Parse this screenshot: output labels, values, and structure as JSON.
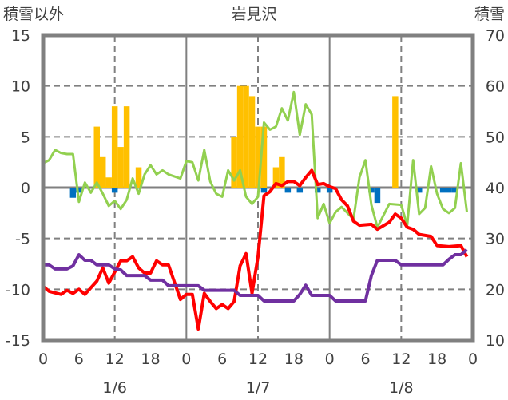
{
  "chart_data": {
    "type": "line",
    "title": "岩見沢",
    "ylabel_left": "積雪以外",
    "ylabel_right": "積雪",
    "ylim_left": [
      -15,
      15
    ],
    "ylim_right": [
      10,
      70
    ],
    "yticks_left": [
      "15",
      "10",
      "5",
      "0",
      "-5",
      "-10",
      "-15"
    ],
    "yticks_right": [
      "70",
      "60",
      "50",
      "40",
      "30",
      "20",
      "10"
    ],
    "xticks": [
      "0",
      "6",
      "12",
      "18",
      "0",
      "6",
      "12",
      "18",
      "0",
      "6",
      "12",
      "18",
      "0"
    ],
    "dates": [
      "1/6",
      "1/7",
      "1/8"
    ],
    "xlim_hours": [
      0,
      72
    ],
    "grid": true,
    "colors": {
      "snowfall": "#FFC000",
      "snow_decrease": "#0070C0",
      "red_line": "#FF0000",
      "green_line": "#92D050",
      "purple_line": "#7030A0",
      "axis": "#808080",
      "text": "#404040"
    },
    "series": [
      {
        "name": "snowfall",
        "kind": "bar",
        "axis": "left",
        "color": "#FFC000",
        "points": [
          [
            9,
            6
          ],
          [
            10,
            3
          ],
          [
            11,
            1
          ],
          [
            12,
            8
          ],
          [
            13,
            4
          ],
          [
            14,
            8
          ],
          [
            16,
            2
          ],
          [
            32,
            5
          ],
          [
            33,
            10
          ],
          [
            34,
            10
          ],
          [
            35,
            9
          ],
          [
            36,
            6
          ],
          [
            37,
            6
          ],
          [
            39,
            2
          ],
          [
            40,
            3
          ],
          [
            59,
            9
          ]
        ]
      },
      {
        "name": "snow-decrease",
        "kind": "bar",
        "axis": "left",
        "color": "#0070C0",
        "points": [
          [
            5,
            -1
          ],
          [
            6,
            -0.5
          ],
          [
            12,
            -0.5
          ],
          [
            37,
            -0.5
          ],
          [
            41,
            -0.5
          ],
          [
            43,
            -0.5
          ],
          [
            46,
            -0.5
          ],
          [
            48,
            -0.5
          ],
          [
            55,
            -0.5
          ],
          [
            56,
            -1.5
          ],
          [
            63,
            -0.5
          ],
          [
            67,
            -0.5
          ],
          [
            68,
            -0.5
          ],
          [
            69,
            -0.5
          ]
        ]
      },
      {
        "name": "green-line",
        "kind": "line",
        "axis": "left",
        "color": "#92D050",
        "points": [
          [
            0,
            2.4
          ],
          [
            1,
            2.7
          ],
          [
            2,
            3.7
          ],
          [
            3,
            3.4
          ],
          [
            4,
            3.3
          ],
          [
            5,
            3.3
          ],
          [
            6,
            -1.4
          ],
          [
            7,
            0.5
          ],
          [
            8,
            -0.5
          ],
          [
            9,
            0.5
          ],
          [
            10,
            -0.6
          ],
          [
            11,
            -1.8
          ],
          [
            12,
            -1.3
          ],
          [
            13,
            -2.1
          ],
          [
            14,
            -1.2
          ],
          [
            15,
            0.9
          ],
          [
            16,
            -0.6
          ],
          [
            17,
            1.3
          ],
          [
            18,
            2.2
          ],
          [
            19,
            1.3
          ],
          [
            20,
            1.7
          ],
          [
            21,
            1.3
          ],
          [
            23,
            0.9
          ],
          [
            24,
            2.6
          ],
          [
            25,
            2.5
          ],
          [
            26,
            0.7
          ],
          [
            27,
            3.7
          ],
          [
            28,
            0.6
          ],
          [
            29,
            -0.6
          ],
          [
            30,
            -0.9
          ],
          [
            31,
            1.7
          ],
          [
            32,
            0.7
          ],
          [
            33,
            1.7
          ],
          [
            34,
            -0.9
          ],
          [
            35,
            -1.6
          ],
          [
            36,
            -0.9
          ],
          [
            37,
            6.4
          ],
          [
            38,
            5.7
          ],
          [
            39,
            6.0
          ],
          [
            40,
            7.8
          ],
          [
            41,
            6.6
          ],
          [
            42,
            9.4
          ],
          [
            43,
            5.2
          ],
          [
            44,
            8.2
          ],
          [
            45,
            7.2
          ],
          [
            46,
            -3.0
          ],
          [
            47,
            -1.6
          ],
          [
            48,
            -3.5
          ],
          [
            49,
            -2.4
          ],
          [
            50,
            -1.9
          ],
          [
            52,
            -3.1
          ],
          [
            53,
            1.0
          ],
          [
            54,
            2.7
          ],
          [
            55,
            -1.7
          ],
          [
            56,
            -3.9
          ],
          [
            58,
            -1.6
          ],
          [
            60,
            -1.7
          ],
          [
            61,
            -3.7
          ],
          [
            62,
            2.7
          ],
          [
            63,
            -2.6
          ],
          [
            64,
            -2.0
          ],
          [
            65,
            2.1
          ],
          [
            66,
            -0.6
          ],
          [
            67,
            -2.1
          ],
          [
            68,
            -2.5
          ],
          [
            69,
            -2.0
          ],
          [
            70,
            2.4
          ],
          [
            71,
            -2.4
          ]
        ]
      },
      {
        "name": "red-line",
        "kind": "line",
        "axis": "left",
        "color": "#FF0000",
        "points": [
          [
            0,
            -9.7
          ],
          [
            1,
            -10.2
          ],
          [
            3,
            -10.5
          ],
          [
            4,
            -10.1
          ],
          [
            5,
            -10.4
          ],
          [
            6,
            -10
          ],
          [
            7,
            -10.5
          ],
          [
            9,
            -9.2
          ],
          [
            10,
            -7.9
          ],
          [
            11,
            -9.4
          ],
          [
            13,
            -7.2
          ],
          [
            14,
            -7.2
          ],
          [
            15,
            -6.8
          ],
          [
            16,
            -7.9
          ],
          [
            17,
            -8.4
          ],
          [
            18,
            -8.4
          ],
          [
            19,
            -7.2
          ],
          [
            20,
            -7.6
          ],
          [
            21,
            -7.6
          ],
          [
            23,
            -11
          ],
          [
            24,
            -10.5
          ],
          [
            25,
            -10.5
          ],
          [
            26,
            -13.9
          ],
          [
            27,
            -10.4
          ],
          [
            28,
            -11.2
          ],
          [
            29,
            -11.9
          ],
          [
            30,
            -11.5
          ],
          [
            31,
            -11.9
          ],
          [
            32,
            -11.2
          ],
          [
            33,
            -7.7
          ],
          [
            34,
            -6.5
          ],
          [
            35,
            -10.4
          ],
          [
            36,
            -6.8
          ],
          [
            37,
            -0.8
          ],
          [
            38,
            -0.4
          ],
          [
            39,
            0.4
          ],
          [
            40,
            0.2
          ],
          [
            41,
            0.6
          ],
          [
            42,
            0.6
          ],
          [
            43,
            0.2
          ],
          [
            44,
            1.0
          ],
          [
            45,
            1.7
          ],
          [
            46,
            0.3
          ],
          [
            47,
            0.4
          ],
          [
            48,
            0.1
          ],
          [
            49,
            -0.1
          ],
          [
            50,
            -1.2
          ],
          [
            51,
            -1.8
          ],
          [
            52,
            -3.3
          ],
          [
            53,
            -3.7
          ],
          [
            55,
            -3.6
          ],
          [
            56,
            -4.1
          ],
          [
            58,
            -3.4
          ],
          [
            59,
            -2.6
          ],
          [
            60,
            -3.0
          ],
          [
            61,
            -3.9
          ],
          [
            62,
            -4.1
          ],
          [
            63,
            -4.6
          ],
          [
            65,
            -4.8
          ],
          [
            66,
            -5.7
          ],
          [
            68,
            -5.8
          ],
          [
            70,
            -5.7
          ],
          [
            71,
            -6.8
          ]
        ]
      },
      {
        "name": "purple-line",
        "kind": "line",
        "axis": "right",
        "color": "#7030A0",
        "points": [
          [
            0,
            24.8
          ],
          [
            1,
            24.8
          ],
          [
            2,
            24
          ],
          [
            4,
            24
          ],
          [
            5,
            24.6
          ],
          [
            6,
            26.8
          ],
          [
            7,
            25.7
          ],
          [
            8,
            25.7
          ],
          [
            9,
            24.8
          ],
          [
            11,
            24.8
          ],
          [
            12,
            24
          ],
          [
            13,
            23.8
          ],
          [
            14,
            22.7
          ],
          [
            17,
            22.7
          ],
          [
            18,
            21.8
          ],
          [
            20,
            21.8
          ],
          [
            21,
            20.7
          ],
          [
            26,
            20.7
          ],
          [
            27,
            19.8
          ],
          [
            32,
            19.8
          ],
          [
            33,
            18.8
          ],
          [
            36,
            18.8
          ],
          [
            37,
            17.7
          ],
          [
            42,
            17.7
          ],
          [
            43,
            19
          ],
          [
            44,
            20.8
          ],
          [
            45,
            18.8
          ],
          [
            48,
            18.8
          ],
          [
            49,
            17.7
          ],
          [
            54,
            17.7
          ],
          [
            55,
            22.7
          ],
          [
            56,
            25.7
          ],
          [
            59,
            25.7
          ],
          [
            60,
            24.8
          ],
          [
            67,
            24.8
          ],
          [
            68,
            25.9
          ],
          [
            69,
            26.8
          ],
          [
            70,
            26.8
          ],
          [
            71,
            27.8
          ]
        ]
      }
    ]
  }
}
